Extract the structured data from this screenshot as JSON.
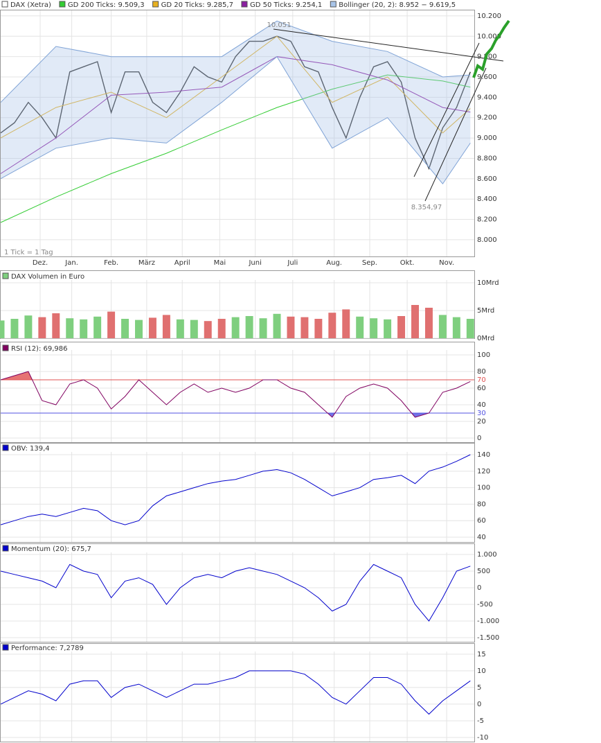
{
  "chart_data": [
    {
      "type": "line",
      "xlim": [
        0,
        240
      ],
      "xticks": [
        {
          "value": 20,
          "label": "Dez."
        },
        {
          "value": 36,
          "label": "Jan."
        },
        {
          "value": 56,
          "label": "Feb."
        },
        {
          "value": 74,
          "label": "März"
        },
        {
          "value": 92,
          "label": "April"
        },
        {
          "value": 111,
          "label": "Mai"
        },
        {
          "value": 129,
          "label": "Juni"
        },
        {
          "value": 148,
          "label": "Juli"
        },
        {
          "value": 169,
          "label": "Aug."
        },
        {
          "value": 187,
          "label": "Sep."
        },
        {
          "value": 206,
          "label": "Okt."
        },
        {
          "value": 226,
          "label": "Nov."
        }
      ],
      "ylim": [
        7836,
        10254
      ],
      "yticks": [
        {
          "value": 8000,
          "label": "8.000"
        },
        {
          "value": 8200,
          "label": "8.200"
        },
        {
          "value": 8400,
          "label": "8.400"
        },
        {
          "value": 8600,
          "label": "8.600"
        },
        {
          "value": 8800,
          "label": "8.800"
        },
        {
          "value": 9000,
          "label": "9.000"
        },
        {
          "value": 9200,
          "label": "9.200"
        },
        {
          "value": 9400,
          "label": "9.400"
        },
        {
          "value": 9600,
          "label": "9.600"
        },
        {
          "value": 9800,
          "label": "9.800"
        },
        {
          "value": 10000,
          "label": "10.000"
        },
        {
          "value": 10200,
          "label": "10.200"
        }
      ],
      "grid": true,
      "x": [
        0,
        7,
        14,
        21,
        28,
        35,
        42,
        49,
        56,
        63,
        70,
        77,
        84,
        91,
        98,
        105,
        112,
        119,
        126,
        133,
        140,
        147,
        154,
        161,
        168,
        175,
        182,
        189,
        196,
        203,
        210,
        217,
        224,
        231,
        238
      ],
      "series": [
        {
          "name": "DAX (Xetra)",
          "color": "#333333",
          "values": [
            9050,
            9150,
            9350,
            9200,
            9000,
            9650,
            9700,
            9750,
            9250,
            9650,
            9650,
            9350,
            9250,
            9450,
            9700,
            9600,
            9550,
            9800,
            9950,
            9950,
            10000,
            9950,
            9700,
            9650,
            9300,
            9000,
            9400,
            9700,
            9750,
            9550,
            9000,
            8700,
            9100,
            9300,
            9650
          ]
        },
        {
          "name": "GD 200 Ticks: 9.509,3",
          "color": "#33cc33",
          "x": [
            0,
            28,
            56,
            84,
            112,
            140,
            168,
            196,
            224,
            238
          ],
          "values": [
            8170,
            8420,
            8650,
            8850,
            9080,
            9300,
            9480,
            9620,
            9560,
            9500
          ]
        },
        {
          "name": "GD 20 Ticks: 9.285,7",
          "color": "#e6b020",
          "x": [
            0,
            28,
            56,
            84,
            112,
            140,
            168,
            196,
            224,
            238
          ],
          "values": [
            9000,
            9300,
            9450,
            9200,
            9600,
            10000,
            9350,
            9600,
            9050,
            9290
          ]
        },
        {
          "name": "GD 50 Ticks: 9.254,1",
          "color": "#8a1fa0",
          "x": [
            0,
            28,
            56,
            84,
            112,
            140,
            168,
            196,
            224,
            238
          ],
          "values": [
            8650,
            9000,
            9420,
            9450,
            9500,
            9800,
            9720,
            9570,
            9300,
            9254
          ]
        },
        {
          "name": "Bollinger (20, 2): 8.952 − 9.619,5",
          "color": "#a8c4e8",
          "x": [
            0,
            28,
            56,
            84,
            112,
            140,
            168,
            196,
            224,
            238
          ],
          "upper": [
            9350,
            9900,
            9800,
            9800,
            9800,
            10150,
            9950,
            9850,
            9600,
            9620
          ],
          "lower": [
            8600,
            8900,
            9000,
            8950,
            9350,
            9800,
            8900,
            9200,
            8550,
            8950
          ]
        }
      ],
      "annotations": [
        "10.051",
        "8.354,97",
        "1 Tick = 1 Tag"
      ]
    },
    {
      "type": "bar",
      "ylim": [
        0,
        10.5
      ],
      "yticks": [
        {
          "value": 0,
          "label": "0Mrd"
        },
        {
          "value": 5,
          "label": "5Mrd"
        },
        {
          "value": 10,
          "label": "10Mrd"
        }
      ],
      "series": [
        {
          "name": "DAX Volumen in Euro",
          "color": "#7fcf7f",
          "down_color": "#e07070",
          "values": [
            3.2,
            3.5,
            4.1,
            3.8,
            4.5,
            3.6,
            3.4,
            3.9,
            4.8,
            3.5,
            3.3,
            3.7,
            4.2,
            3.4,
            3.3,
            3.1,
            3.5,
            3.8,
            4.0,
            3.6,
            4.4,
            3.9,
            3.8,
            3.5,
            4.6,
            5.2,
            3.9,
            3.6,
            3.4,
            4.0,
            6.0,
            5.5,
            4.2,
            3.8,
            3.5
          ]
        }
      ]
    },
    {
      "type": "line",
      "ylim": [
        -5,
        105.8
      ],
      "yticks": [
        0,
        20,
        40,
        60,
        80,
        100
      ],
      "levels": [
        {
          "value": 70,
          "color": "#e05050"
        },
        {
          "value": 30,
          "color": "#5050e0"
        }
      ],
      "series": [
        {
          "name": "RSI (12): 69,986",
          "color": "#800060",
          "values": [
            70,
            75,
            80,
            45,
            40,
            65,
            70,
            60,
            35,
            50,
            70,
            55,
            40,
            55,
            65,
            55,
            60,
            55,
            60,
            70,
            70,
            60,
            55,
            40,
            25,
            50,
            60,
            65,
            60,
            45,
            25,
            30,
            55,
            60,
            68
          ]
        }
      ]
    },
    {
      "type": "line",
      "ylim": [
        34.1,
        143.4
      ],
      "yticks": [
        40,
        60,
        80,
        100,
        120,
        140
      ],
      "series": [
        {
          "name": "OBV: 139,4",
          "color": "#0000cc",
          "values": [
            55,
            60,
            65,
            68,
            65,
            70,
            75,
            72,
            60,
            55,
            60,
            78,
            90,
            95,
            100,
            105,
            108,
            110,
            115,
            120,
            122,
            118,
            110,
            100,
            90,
            95,
            100,
            110,
            112,
            115,
            105,
            120,
            125,
            132,
            140
          ]
        }
      ]
    },
    {
      "type": "line",
      "ylim": [
        -1625,
        1062
      ],
      "yticks": [
        {
          "value": -1500,
          "label": "-1.500"
        },
        {
          "value": -1000,
          "label": "-1.000"
        },
        -500,
        0,
        500,
        {
          "value": 1000,
          "label": "1.000"
        }
      ],
      "series": [
        {
          "name": "Momentum (20): 675,7",
          "color": "#0000cc",
          "values": [
            500,
            400,
            300,
            200,
            0,
            700,
            500,
            400,
            -300,
            200,
            300,
            100,
            -500,
            0,
            300,
            400,
            300,
            500,
            600,
            500,
            400,
            200,
            0,
            -300,
            -700,
            -500,
            200,
            700,
            500,
            300,
            -500,
            -1000,
            -300,
            500,
            650
          ]
        }
      ]
    },
    {
      "type": "line",
      "ylim": [
        -11.25,
        15.8
      ],
      "yticks": [
        -10,
        -5,
        0,
        5,
        10,
        15
      ],
      "series": [
        {
          "name": "Performance: 7,2789",
          "color": "#0000cc",
          "values": [
            0,
            2,
            4,
            3,
            1,
            6,
            7,
            7,
            2,
            5,
            6,
            4,
            2,
            4,
            6,
            6,
            7,
            8,
            10,
            10,
            10,
            10,
            9,
            6,
            2,
            0,
            4,
            8,
            8,
            6,
            1,
            -3,
            1,
            4,
            7
          ]
        }
      ]
    }
  ]
}
